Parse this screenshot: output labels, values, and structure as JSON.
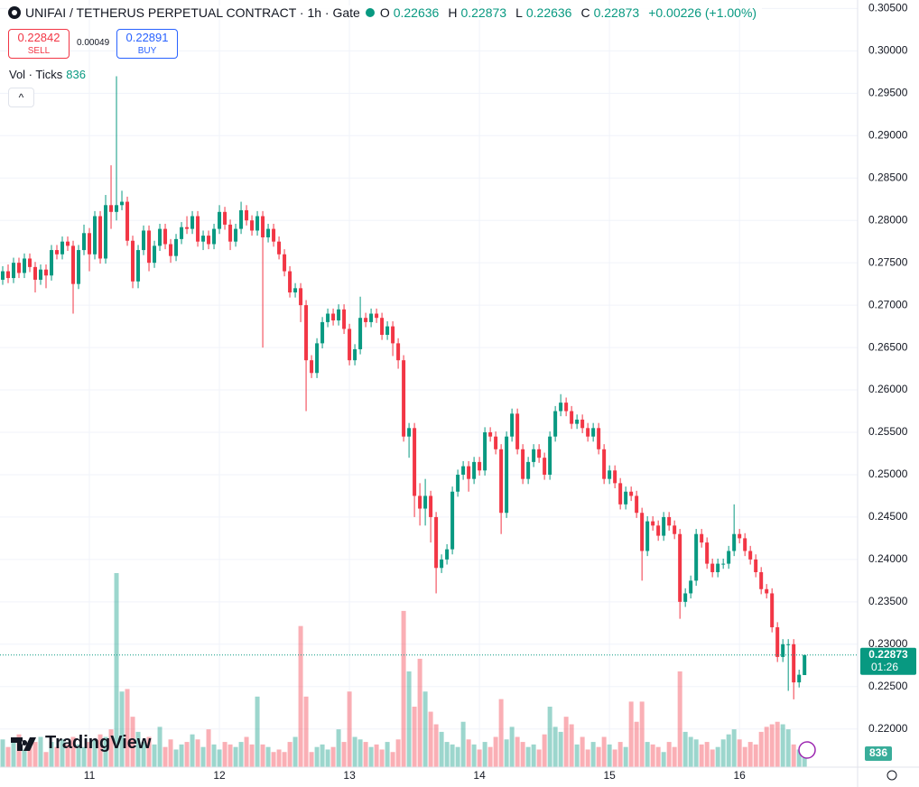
{
  "header": {
    "symbol": "UNIFAI / TETHERUS PERPETUAL CONTRACT · 1h · Gate",
    "o_label": "O",
    "h_label": "H",
    "l_label": "L",
    "c_label": "C",
    "change": "+0.00226 (+1.00%)"
  },
  "trade": {
    "sell_price": "0.22842",
    "sell": "SELL",
    "spread": "0.00049",
    "buy_price": "0.22891",
    "buy": "BUY"
  },
  "indicator": {
    "name": "Vol · Ticks"
  },
  "logo": "TradingView",
  "chart_data": {
    "type": "candlestick",
    "up_color": "#089981",
    "down_color": "#f23645",
    "grid": true,
    "countdown": "01:26",
    "open": [
      0.273,
      0.274,
      0.2732,
      0.275,
      0.2738,
      0.2755,
      0.2745,
      0.273,
      0.2742,
      0.2735,
      0.2765,
      0.276,
      0.2775,
      0.277,
      0.2725,
      0.2765,
      0.2785,
      0.276,
      0.2805,
      0.2755,
      0.2818,
      0.281,
      0.2818,
      0.2822,
      0.2776,
      0.2728,
      0.2765,
      0.2788,
      0.275,
      0.277,
      0.279,
      0.2772,
      0.2758,
      0.2778,
      0.2792,
      0.279,
      0.2805,
      0.2775,
      0.2782,
      0.2772,
      0.279,
      0.281,
      0.2795,
      0.2775,
      0.279,
      0.2812,
      0.28,
      0.2788,
      0.2805,
      0.278,
      0.279,
      0.2775,
      0.276,
      0.274,
      0.2715,
      0.272,
      0.27,
      0.2635,
      0.262,
      0.2655,
      0.268,
      0.269,
      0.2682,
      0.2695,
      0.2672,
      0.2635,
      0.2648,
      0.2685,
      0.268,
      0.269,
      0.2685,
      0.2665,
      0.2675,
      0.2655,
      0.2635,
      0.2545,
      0.2555,
      0.2475,
      0.246,
      0.2475,
      0.245,
      0.239,
      0.24,
      0.2412,
      0.248,
      0.25,
      0.251,
      0.2495,
      0.2515,
      0.2505,
      0.255,
      0.2545,
      0.253,
      0.2455,
      0.2545,
      0.2572,
      0.253,
      0.2495,
      0.2515,
      0.253,
      0.252,
      0.25,
      0.2545,
      0.2575,
      0.2585,
      0.2575,
      0.256,
      0.2565,
      0.2555,
      0.2545,
      0.2555,
      0.253,
      0.2495,
      0.2505,
      0.249,
      0.2465,
      0.248,
      0.2475,
      0.2455,
      0.241,
      0.2445,
      0.244,
      0.2428,
      0.245,
      0.244,
      0.243,
      0.235,
      0.236,
      0.2375,
      0.243,
      0.242,
      0.2395,
      0.2385,
      0.2395,
      0.2395,
      0.241,
      0.243,
      0.2425,
      0.241,
      0.24,
      0.2385,
      0.2365,
      0.236,
      0.232,
      0.2285,
      0.23,
      0.23,
      0.2255,
      0.22636
    ],
    "high": [
      0.2746,
      0.2748,
      0.2756,
      0.2756,
      0.2761,
      0.2761,
      0.2751,
      0.2748,
      0.2748,
      0.2771,
      0.2771,
      0.2781,
      0.2781,
      0.2776,
      0.2771,
      0.2795,
      0.2791,
      0.2811,
      0.2811,
      0.283,
      0.2865,
      0.297,
      0.2835,
      0.2828,
      0.2782,
      0.2771,
      0.2794,
      0.2794,
      0.2776,
      0.2796,
      0.2796,
      0.2778,
      0.2784,
      0.2798,
      0.2805,
      0.2811,
      0.2811,
      0.2788,
      0.2788,
      0.2796,
      0.2818,
      0.2816,
      0.2801,
      0.2796,
      0.2822,
      0.2818,
      0.2806,
      0.2811,
      0.2811,
      0.2796,
      0.2796,
      0.2781,
      0.2766,
      0.2746,
      0.2726,
      0.2726,
      0.2706,
      0.2641,
      0.2661,
      0.2686,
      0.2696,
      0.2696,
      0.2701,
      0.2701,
      0.2678,
      0.2654,
      0.271,
      0.2691,
      0.2696,
      0.2696,
      0.2691,
      0.2681,
      0.2681,
      0.2661,
      0.2641,
      0.2561,
      0.2561,
      0.249,
      0.2495,
      0.2481,
      0.2456,
      0.2406,
      0.2418,
      0.2486,
      0.2506,
      0.2516,
      0.2516,
      0.2521,
      0.2521,
      0.2556,
      0.2556,
      0.2551,
      0.2536,
      0.2551,
      0.2578,
      0.2578,
      0.2536,
      0.2521,
      0.2536,
      0.2536,
      0.2526,
      0.2551,
      0.2581,
      0.2595,
      0.2591,
      0.2581,
      0.2571,
      0.2571,
      0.2561,
      0.2561,
      0.2561,
      0.2536,
      0.2511,
      0.2511,
      0.2496,
      0.2486,
      0.2486,
      0.2481,
      0.2461,
      0.2451,
      0.2451,
      0.2446,
      0.2456,
      0.2456,
      0.2446,
      0.2436,
      0.2366,
      0.2381,
      0.2436,
      0.2436,
      0.2426,
      0.2401,
      0.2401,
      0.2401,
      0.2416,
      0.2465,
      0.2436,
      0.2431,
      0.2416,
      0.2406,
      0.2391,
      0.2371,
      0.2366,
      0.2326,
      0.2306,
      0.2306,
      0.2306,
      0.227,
      0.22873
    ],
    "low": [
      0.2724,
      0.2726,
      0.2726,
      0.2732,
      0.2732,
      0.2739,
      0.2715,
      0.2724,
      0.272,
      0.2729,
      0.2754,
      0.2754,
      0.2764,
      0.269,
      0.2719,
      0.2759,
      0.274,
      0.2754,
      0.2749,
      0.2749,
      0.279,
      0.28,
      0.2812,
      0.277,
      0.272,
      0.272,
      0.2759,
      0.274,
      0.2744,
      0.2764,
      0.2766,
      0.275,
      0.2752,
      0.2772,
      0.2784,
      0.2784,
      0.2769,
      0.2765,
      0.2766,
      0.2766,
      0.2784,
      0.2789,
      0.2765,
      0.2769,
      0.2784,
      0.2794,
      0.2782,
      0.2782,
      0.265,
      0.2774,
      0.2769,
      0.2754,
      0.2734,
      0.2709,
      0.2709,
      0.268,
      0.2575,
      0.2614,
      0.2614,
      0.2649,
      0.2674,
      0.2676,
      0.2676,
      0.2666,
      0.2629,
      0.2629,
      0.2642,
      0.2674,
      0.2674,
      0.2679,
      0.2659,
      0.2659,
      0.264,
      0.2625,
      0.2539,
      0.252,
      0.245,
      0.244,
      0.244,
      0.242,
      0.236,
      0.2384,
      0.2394,
      0.2406,
      0.2474,
      0.2494,
      0.248,
      0.2489,
      0.2499,
      0.2499,
      0.2539,
      0.2524,
      0.243,
      0.2449,
      0.2539,
      0.2524,
      0.2489,
      0.2489,
      0.2509,
      0.2514,
      0.2494,
      0.2494,
      0.2539,
      0.2569,
      0.2569,
      0.2554,
      0.2554,
      0.2549,
      0.2539,
      0.2539,
      0.2524,
      0.2489,
      0.2489,
      0.2484,
      0.2459,
      0.2459,
      0.2469,
      0.2449,
      0.2375,
      0.2404,
      0.2434,
      0.2422,
      0.2422,
      0.2434,
      0.2424,
      0.233,
      0.2344,
      0.2354,
      0.2369,
      0.2414,
      0.2389,
      0.2379,
      0.2379,
      0.2389,
      0.2389,
      0.2404,
      0.2419,
      0.2404,
      0.2394,
      0.2379,
      0.2359,
      0.2354,
      0.2314,
      0.2279,
      0.2279,
      0.2245,
      0.2235,
      0.2249,
      0.22636
    ],
    "close": [
      0.274,
      0.2732,
      0.275,
      0.2738,
      0.2755,
      0.2745,
      0.273,
      0.2742,
      0.2735,
      0.2765,
      0.276,
      0.2775,
      0.277,
      0.2725,
      0.2765,
      0.2785,
      0.276,
      0.2805,
      0.2755,
      0.2818,
      0.281,
      0.2818,
      0.2822,
      0.2776,
      0.2728,
      0.2765,
      0.2788,
      0.275,
      0.277,
      0.279,
      0.2772,
      0.2758,
      0.2778,
      0.2792,
      0.279,
      0.2805,
      0.2775,
      0.2782,
      0.2772,
      0.279,
      0.281,
      0.2795,
      0.2775,
      0.279,
      0.2812,
      0.28,
      0.2788,
      0.2805,
      0.278,
      0.279,
      0.2775,
      0.276,
      0.274,
      0.2715,
      0.272,
      0.27,
      0.2635,
      0.262,
      0.2655,
      0.268,
      0.269,
      0.2682,
      0.2695,
      0.2672,
      0.2635,
      0.2648,
      0.2685,
      0.268,
      0.269,
      0.2685,
      0.2665,
      0.2675,
      0.2655,
      0.2635,
      0.2545,
      0.2555,
      0.2475,
      0.246,
      0.2475,
      0.245,
      0.239,
      0.24,
      0.2412,
      0.248,
      0.25,
      0.251,
      0.2495,
      0.2515,
      0.2505,
      0.255,
      0.2545,
      0.253,
      0.2455,
      0.2545,
      0.2572,
      0.253,
      0.2495,
      0.2515,
      0.253,
      0.252,
      0.25,
      0.2545,
      0.2575,
      0.2585,
      0.2575,
      0.256,
      0.2565,
      0.2555,
      0.2545,
      0.2555,
      0.253,
      0.2495,
      0.2505,
      0.249,
      0.2465,
      0.248,
      0.2475,
      0.2455,
      0.241,
      0.2445,
      0.244,
      0.2428,
      0.245,
      0.244,
      0.243,
      0.235,
      0.236,
      0.2375,
      0.243,
      0.242,
      0.2395,
      0.2385,
      0.2395,
      0.2395,
      0.241,
      0.243,
      0.2425,
      0.241,
      0.24,
      0.2385,
      0.2365,
      0.236,
      0.232,
      0.2285,
      0.23,
      0.23,
      0.2255,
      0.2264,
      0.22873
    ],
    "volume": [
      1100,
      800,
      1000,
      1300,
      700,
      900,
      1000,
      1200,
      600,
      1000,
      800,
      1100,
      900,
      1200,
      900,
      800,
      1000,
      1100,
      1300,
      1200,
      1500,
      7700,
      3000,
      3100,
      2000,
      1400,
      1000,
      1200,
      900,
      1600,
      800,
      1100,
      700,
      900,
      1000,
      1300,
      1100,
      800,
      1500,
      900,
      700,
      1000,
      900,
      800,
      1000,
      1200,
      900,
      2800,
      900,
      800,
      600,
      700,
      600,
      1000,
      1200,
      5600,
      2800,
      600,
      800,
      900,
      700,
      800,
      1500,
      1000,
      3000,
      1200,
      1100,
      1000,
      800,
      900,
      700,
      1000,
      600,
      1100,
      6200,
      3800,
      2400,
      4300,
      3000,
      2200,
      1700,
      1400,
      1000,
      900,
      800,
      1800,
      1100,
      900,
      700,
      1000,
      800,
      1200,
      2700,
      1100,
      1600,
      1200,
      1000,
      800,
      900,
      700,
      1300,
      2400,
      1600,
      1400,
      2000,
      1700,
      900,
      1200,
      700,
      1000,
      800,
      1200,
      900,
      700,
      1000,
      800,
      2600,
      1800,
      2600,
      1000,
      900,
      800,
      600,
      1000,
      800,
      3800,
      1400,
      1200,
      1100,
      900,
      1000,
      700,
      800,
      1100,
      1300,
      1500,
      1100,
      800,
      1000,
      900,
      1400,
      1600,
      1700,
      1800,
      1700,
      1500,
      900,
      700,
      836
    ],
    "ylim": [
      0.2155,
      0.306
    ],
    "yticks": [
      {
        "value": 0.22,
        "label": "0.22000"
      },
      {
        "value": 0.225,
        "label": "0.22500"
      },
      {
        "value": 0.23,
        "label": "0.23000"
      },
      {
        "value": 0.235,
        "label": "0.23500"
      },
      {
        "value": 0.24,
        "label": "0.24000"
      },
      {
        "value": 0.245,
        "label": "0.24500"
      },
      {
        "value": 0.25,
        "label": "0.25000"
      },
      {
        "value": 0.255,
        "label": "0.25500"
      },
      {
        "value": 0.26,
        "label": "0.26000"
      },
      {
        "value": 0.265,
        "label": "0.26500"
      },
      {
        "value": 0.27,
        "label": "0.27000"
      },
      {
        "value": 0.275,
        "label": "0.27500"
      },
      {
        "value": 0.28,
        "label": "0.28000"
      },
      {
        "value": 0.285,
        "label": "0.28500"
      },
      {
        "value": 0.29,
        "label": "0.29000"
      },
      {
        "value": 0.295,
        "label": "0.29500"
      },
      {
        "value": 0.3,
        "label": "0.30000"
      },
      {
        "value": 0.305,
        "label": "0.30500"
      }
    ],
    "xlim": [
      -0.5,
      157.8
    ],
    "xticks": [
      {
        "value": 16,
        "label": "11"
      },
      {
        "value": 40,
        "label": "12"
      },
      {
        "value": 64,
        "label": "13"
      },
      {
        "value": 88,
        "label": "14"
      },
      {
        "value": 112,
        "label": "15"
      },
      {
        "value": 136,
        "label": "16"
      }
    ]
  }
}
